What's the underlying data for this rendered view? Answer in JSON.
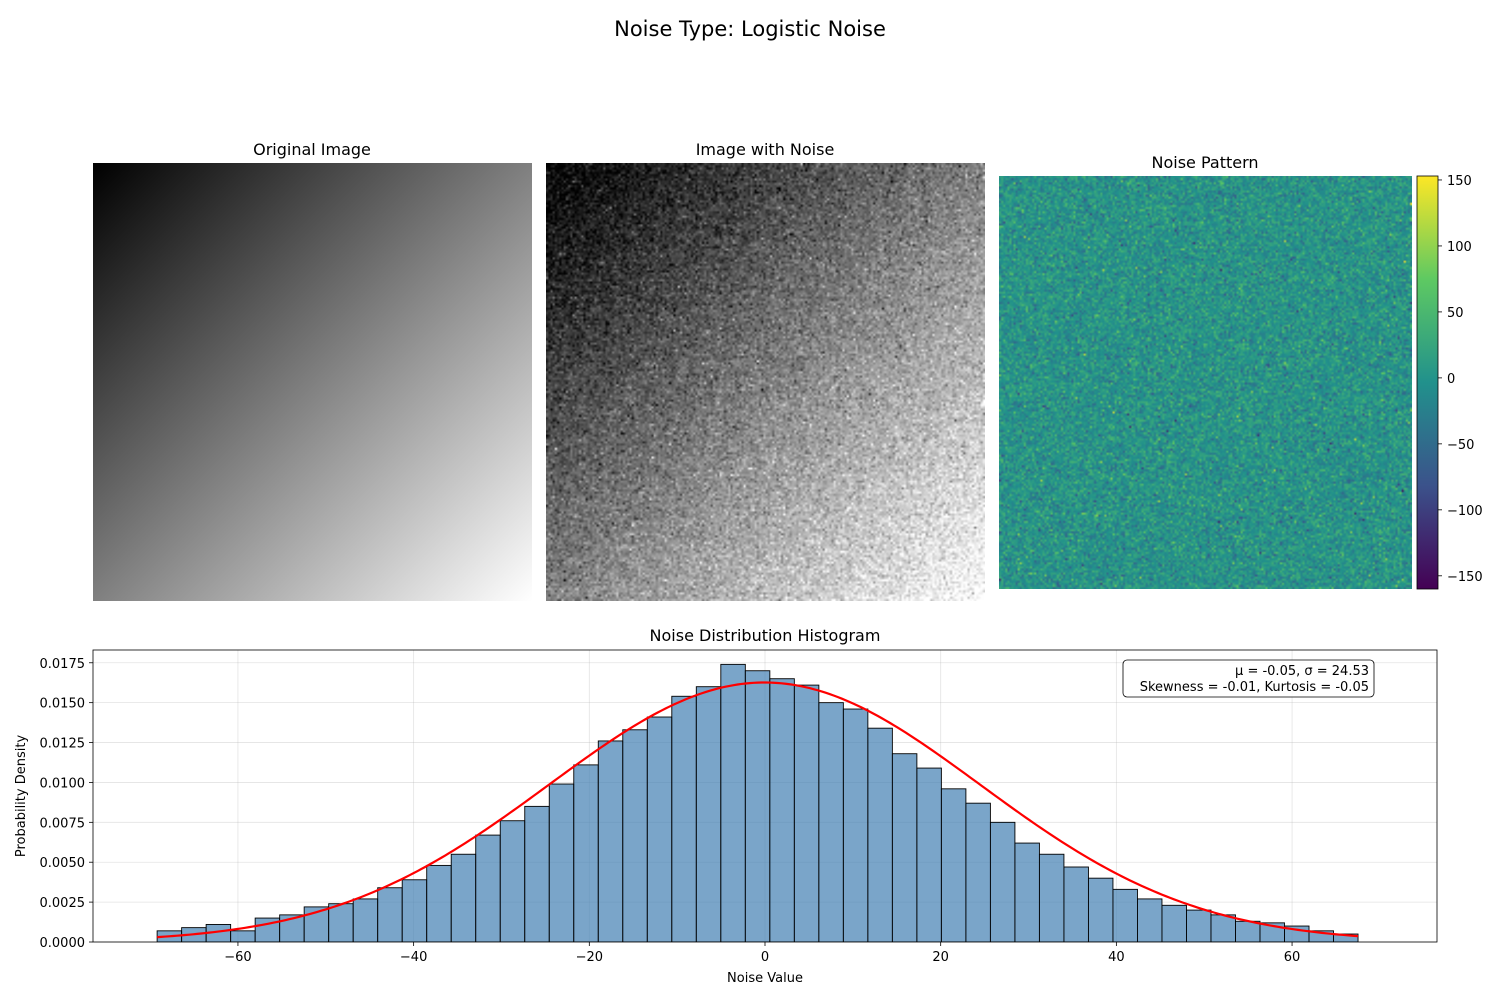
{
  "figure": {
    "suptitle": "Noise Type: Logistic Noise"
  },
  "panels": {
    "original": {
      "title": "Original Image",
      "gradient": [
        "#000000",
        "#ffffff"
      ]
    },
    "noisy": {
      "title": "Image with Noise"
    },
    "pattern": {
      "title": "Noise Pattern",
      "colormap": "viridis",
      "colorbar_ticks": [
        150,
        100,
        50,
        0,
        -50,
        -100,
        -150
      ],
      "colorbar_range": [
        -160,
        153
      ]
    }
  },
  "stats_box": {
    "line1": "μ = -0.05, σ = 24.53",
    "line2": "Skewness = -0.01, Kurtosis = -0.05"
  },
  "chart_data": {
    "type": "bar",
    "title": "Noise Distribution Histogram",
    "xlabel": "Noise Value",
    "ylabel": "Probability Density",
    "xlim": [
      -76.5,
      76.5
    ],
    "ylim": [
      0,
      0.0183
    ],
    "x_ticks": [
      -60,
      -40,
      -20,
      0,
      20,
      40,
      60
    ],
    "y_ticks": [
      0.0,
      0.0025,
      0.005,
      0.0075,
      0.01,
      0.0125,
      0.015,
      0.0175
    ],
    "y_tick_labels": [
      "0.0000",
      "0.0025",
      "0.0050",
      "0.0075",
      "0.0100",
      "0.0125",
      "0.0150",
      "0.0175"
    ],
    "grid": true,
    "bar_color": "#4682b4",
    "fit_color": "#ff0000",
    "bin_start": -69.2,
    "bin_width": 2.79,
    "values": [
      0.0007,
      0.0009,
      0.0011,
      0.0007,
      0.0015,
      0.0017,
      0.0022,
      0.0024,
      0.0027,
      0.0034,
      0.0039,
      0.0048,
      0.0055,
      0.0067,
      0.0076,
      0.0085,
      0.0099,
      0.0111,
      0.0126,
      0.0133,
      0.0141,
      0.0154,
      0.016,
      0.0174,
      0.017,
      0.0165,
      0.0161,
      0.015,
      0.0146,
      0.0134,
      0.0118,
      0.0109,
      0.0096,
      0.0087,
      0.0075,
      0.0062,
      0.0055,
      0.0047,
      0.004,
      0.0033,
      0.0027,
      0.0023,
      0.002,
      0.0017,
      0.0013,
      0.0012,
      0.001,
      0.0007,
      0.0005
    ],
    "fit": {
      "name": "normal",
      "mu": -0.05,
      "sigma": 24.53
    }
  }
}
